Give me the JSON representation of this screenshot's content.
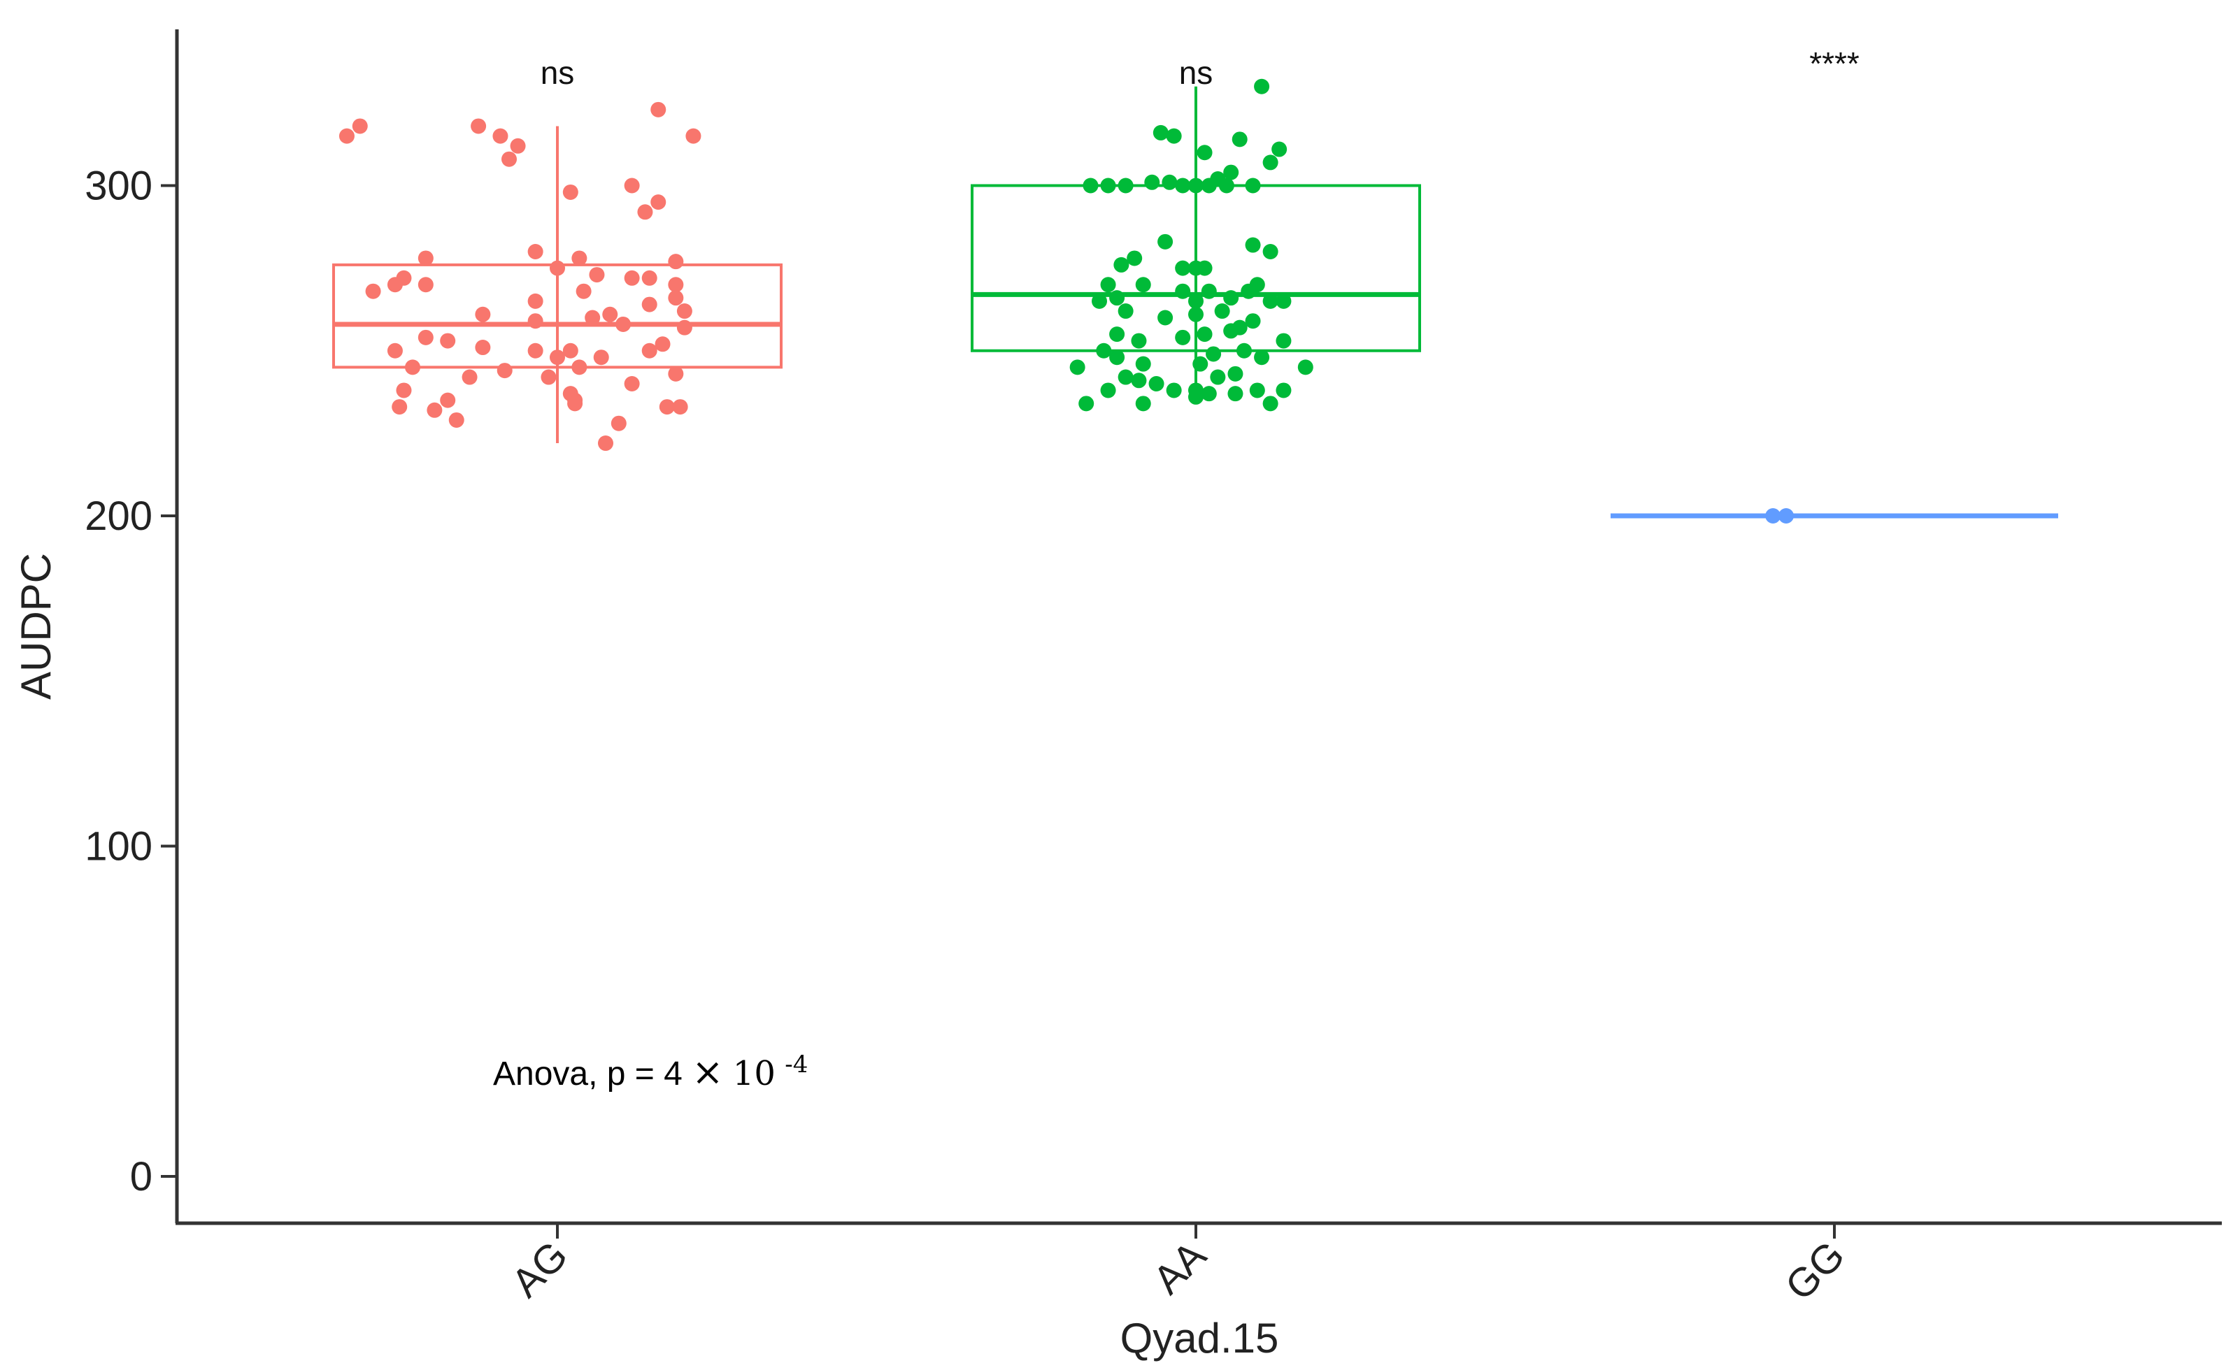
{
  "chart_data": {
    "type": "box",
    "title": "",
    "xlabel": "Qyad.15",
    "ylabel": "AUDPC",
    "ylim": [
      -14,
      345
    ],
    "yticks": [
      0,
      100,
      200,
      300
    ],
    "grid": false,
    "categories": [
      "AG",
      "AA",
      "GG"
    ],
    "annotation": {
      "text": "Anova, p = 4 ",
      "times": "×",
      "base": "10",
      "exponent": "-4"
    },
    "groups": [
      {
        "name": "AG",
        "color": "#F8766D",
        "significance": "ns",
        "box": {
          "min": 222,
          "q1": 245,
          "median": 258,
          "q3": 276,
          "max": 318
        },
        "points": [
          [
            -0.48,
            315
          ],
          [
            -0.45,
            318
          ],
          [
            -0.18,
            318
          ],
          [
            -0.13,
            315
          ],
          [
            -0.09,
            312
          ],
          [
            -0.11,
            308
          ],
          [
            0.03,
            298
          ],
          [
            0.17,
            300
          ],
          [
            0.23,
            323
          ],
          [
            0.31,
            315
          ],
          [
            0.23,
            295
          ],
          [
            0.2,
            292
          ],
          [
            -0.3,
            278
          ],
          [
            -0.05,
            280
          ],
          [
            0.05,
            278
          ],
          [
            0.27,
            277
          ],
          [
            -0.35,
            272
          ],
          [
            -0.37,
            270
          ],
          [
            -0.3,
            270
          ],
          [
            0.0,
            275
          ],
          [
            0.09,
            273
          ],
          [
            0.17,
            272
          ],
          [
            0.21,
            272
          ],
          [
            0.27,
            270
          ],
          [
            -0.42,
            268
          ],
          [
            -0.05,
            265
          ],
          [
            0.06,
            268
          ],
          [
            0.27,
            266
          ],
          [
            0.21,
            264
          ],
          [
            0.29,
            262
          ],
          [
            -0.17,
            261
          ],
          [
            -0.05,
            259
          ],
          [
            0.08,
            260
          ],
          [
            0.15,
            258
          ],
          [
            0.12,
            261
          ],
          [
            0.29,
            257
          ],
          [
            -0.3,
            254
          ],
          [
            -0.25,
            253
          ],
          [
            -0.37,
            250
          ],
          [
            -0.17,
            251
          ],
          [
            -0.05,
            250
          ],
          [
            0.0,
            248
          ],
          [
            0.03,
            250
          ],
          [
            0.1,
            248
          ],
          [
            0.21,
            250
          ],
          [
            0.24,
            252
          ],
          [
            -0.33,
            245
          ],
          [
            -0.12,
            244
          ],
          [
            0.05,
            245
          ],
          [
            0.27,
            243
          ],
          [
            -0.2,
            242
          ],
          [
            -0.02,
            242
          ],
          [
            -0.35,
            238
          ],
          [
            0.03,
            237
          ],
          [
            0.17,
            240
          ],
          [
            -0.36,
            233
          ],
          [
            -0.28,
            232
          ],
          [
            -0.25,
            235
          ],
          [
            0.04,
            235
          ],
          [
            0.25,
            233
          ],
          [
            0.28,
            233
          ],
          [
            -0.23,
            229
          ],
          [
            0.04,
            234
          ],
          [
            0.14,
            228
          ],
          [
            0.11,
            222
          ]
        ]
      },
      {
        "name": "AA",
        "color": "#00BA38",
        "significance": "ns",
        "box": {
          "min": 235,
          "q1": 250,
          "median": 267,
          "q3": 300,
          "max": 330
        },
        "points": [
          [
            0.15,
            330
          ],
          [
            -0.08,
            316
          ],
          [
            -0.05,
            315
          ],
          [
            0.1,
            314
          ],
          [
            0.19,
            311
          ],
          [
            0.02,
            310
          ],
          [
            0.17,
            307
          ],
          [
            -0.2,
            300
          ],
          [
            -0.24,
            300
          ],
          [
            -0.1,
            301
          ],
          [
            -0.06,
            301
          ],
          [
            -0.03,
            300
          ],
          [
            0.0,
            300
          ],
          [
            0.03,
            300
          ],
          [
            0.07,
            300
          ],
          [
            0.13,
            300
          ],
          [
            -0.16,
            300
          ],
          [
            0.05,
            302
          ],
          [
            0.08,
            304
          ],
          [
            -0.07,
            283
          ],
          [
            0.13,
            282
          ],
          [
            -0.14,
            278
          ],
          [
            -0.17,
            276
          ],
          [
            -0.03,
            275
          ],
          [
            0.0,
            275
          ],
          [
            0.02,
            275
          ],
          [
            0.17,
            280
          ],
          [
            -0.2,
            270
          ],
          [
            -0.12,
            270
          ],
          [
            -0.03,
            268
          ],
          [
            0.03,
            268
          ],
          [
            0.12,
            268
          ],
          [
            0.14,
            270
          ],
          [
            0.2,
            265
          ],
          [
            -0.18,
            266
          ],
          [
            -0.22,
            265
          ],
          [
            0.0,
            265
          ],
          [
            0.08,
            266
          ],
          [
            0.17,
            265
          ],
          [
            -0.16,
            262
          ],
          [
            -0.07,
            260
          ],
          [
            0.0,
            261
          ],
          [
            0.06,
            262
          ],
          [
            0.1,
            257
          ],
          [
            0.13,
            259
          ],
          [
            -0.18,
            255
          ],
          [
            -0.13,
            253
          ],
          [
            -0.03,
            254
          ],
          [
            0.02,
            255
          ],
          [
            0.08,
            256
          ],
          [
            0.2,
            253
          ],
          [
            -0.21,
            250
          ],
          [
            -0.18,
            248
          ],
          [
            0.04,
            249
          ],
          [
            0.11,
            250
          ],
          [
            0.15,
            248
          ],
          [
            -0.27,
            245
          ],
          [
            -0.12,
            246
          ],
          [
            0.01,
            246
          ],
          [
            0.05,
            242
          ],
          [
            0.09,
            243
          ],
          [
            0.25,
            245
          ],
          [
            -0.16,
            242
          ],
          [
            -0.13,
            241
          ],
          [
            -0.09,
            240
          ],
          [
            0.0,
            238
          ],
          [
            -0.2,
            238
          ],
          [
            -0.05,
            238
          ],
          [
            0.03,
            237
          ],
          [
            0.09,
            237
          ],
          [
            0.14,
            238
          ],
          [
            0.2,
            238
          ],
          [
            -0.25,
            234
          ],
          [
            -0.12,
            234
          ],
          [
            0.0,
            236
          ],
          [
            0.17,
            234
          ]
        ]
      },
      {
        "name": "GG",
        "color": "#619CFF",
        "significance": "****",
        "box": {
          "min": 200,
          "q1": 200,
          "median": 200,
          "q3": 200,
          "max": 200
        },
        "points": [
          [
            -0.14,
            200
          ],
          [
            -0.11,
            200
          ]
        ]
      }
    ]
  }
}
